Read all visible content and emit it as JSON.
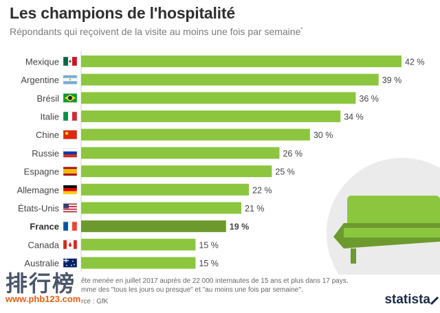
{
  "title": "Les champions de l'hospitalité",
  "subtitle": "Répondants qui reçoivent de la visite au moins une fois par semaine",
  "subtitle_mark": "*",
  "footnotes": {
    "line1": "ête menée en juillet 2017 auprès de 22 000 internautes de 15 ans et plus dans 17 pays.",
    "line2": "mme des \"tous les jours ou presque\" et \"au moins une fois par semaine\".",
    "line3": "rce : GfK"
  },
  "watermark": {
    "text": "排行榜",
    "url": "www.phb123.com"
  },
  "brand": "statista",
  "colors": {
    "bar": "#8cc63f",
    "bar_highlight": "#6c9a2f",
    "sofa_light": "#8cc63f",
    "sofa_dark": "#6c9a2f",
    "circle": "#ebebeb",
    "grid": "#d0d0d0"
  },
  "chart_data": {
    "type": "bar",
    "orientation": "horizontal",
    "unit": "%",
    "xlim": [
      0,
      42
    ],
    "highlight": "France",
    "categories": [
      "Mexique",
      "Argentine",
      "Brésil",
      "Italie",
      "Chine",
      "Russie",
      "Espagne",
      "Allemagne",
      "États-Unis",
      "France",
      "Canada",
      "Australie"
    ],
    "values": [
      42,
      39,
      36,
      34,
      30,
      26,
      25,
      22,
      21,
      19,
      15,
      15
    ],
    "value_labels": [
      "42 %",
      "39 %",
      "36 %",
      "34 %",
      "30 %",
      "26 %",
      "25 %",
      "22 %",
      "21 %",
      "19 %",
      "15 %",
      "15 %"
    ],
    "flags": [
      "mexico-flag-icon",
      "argentina-flag-icon",
      "brazil-flag-icon",
      "italy-flag-icon",
      "china-flag-icon",
      "russia-flag-icon",
      "spain-flag-icon",
      "germany-flag-icon",
      "usa-flag-icon",
      "france-flag-icon",
      "canada-flag-icon",
      "australia-flag-icon"
    ]
  }
}
